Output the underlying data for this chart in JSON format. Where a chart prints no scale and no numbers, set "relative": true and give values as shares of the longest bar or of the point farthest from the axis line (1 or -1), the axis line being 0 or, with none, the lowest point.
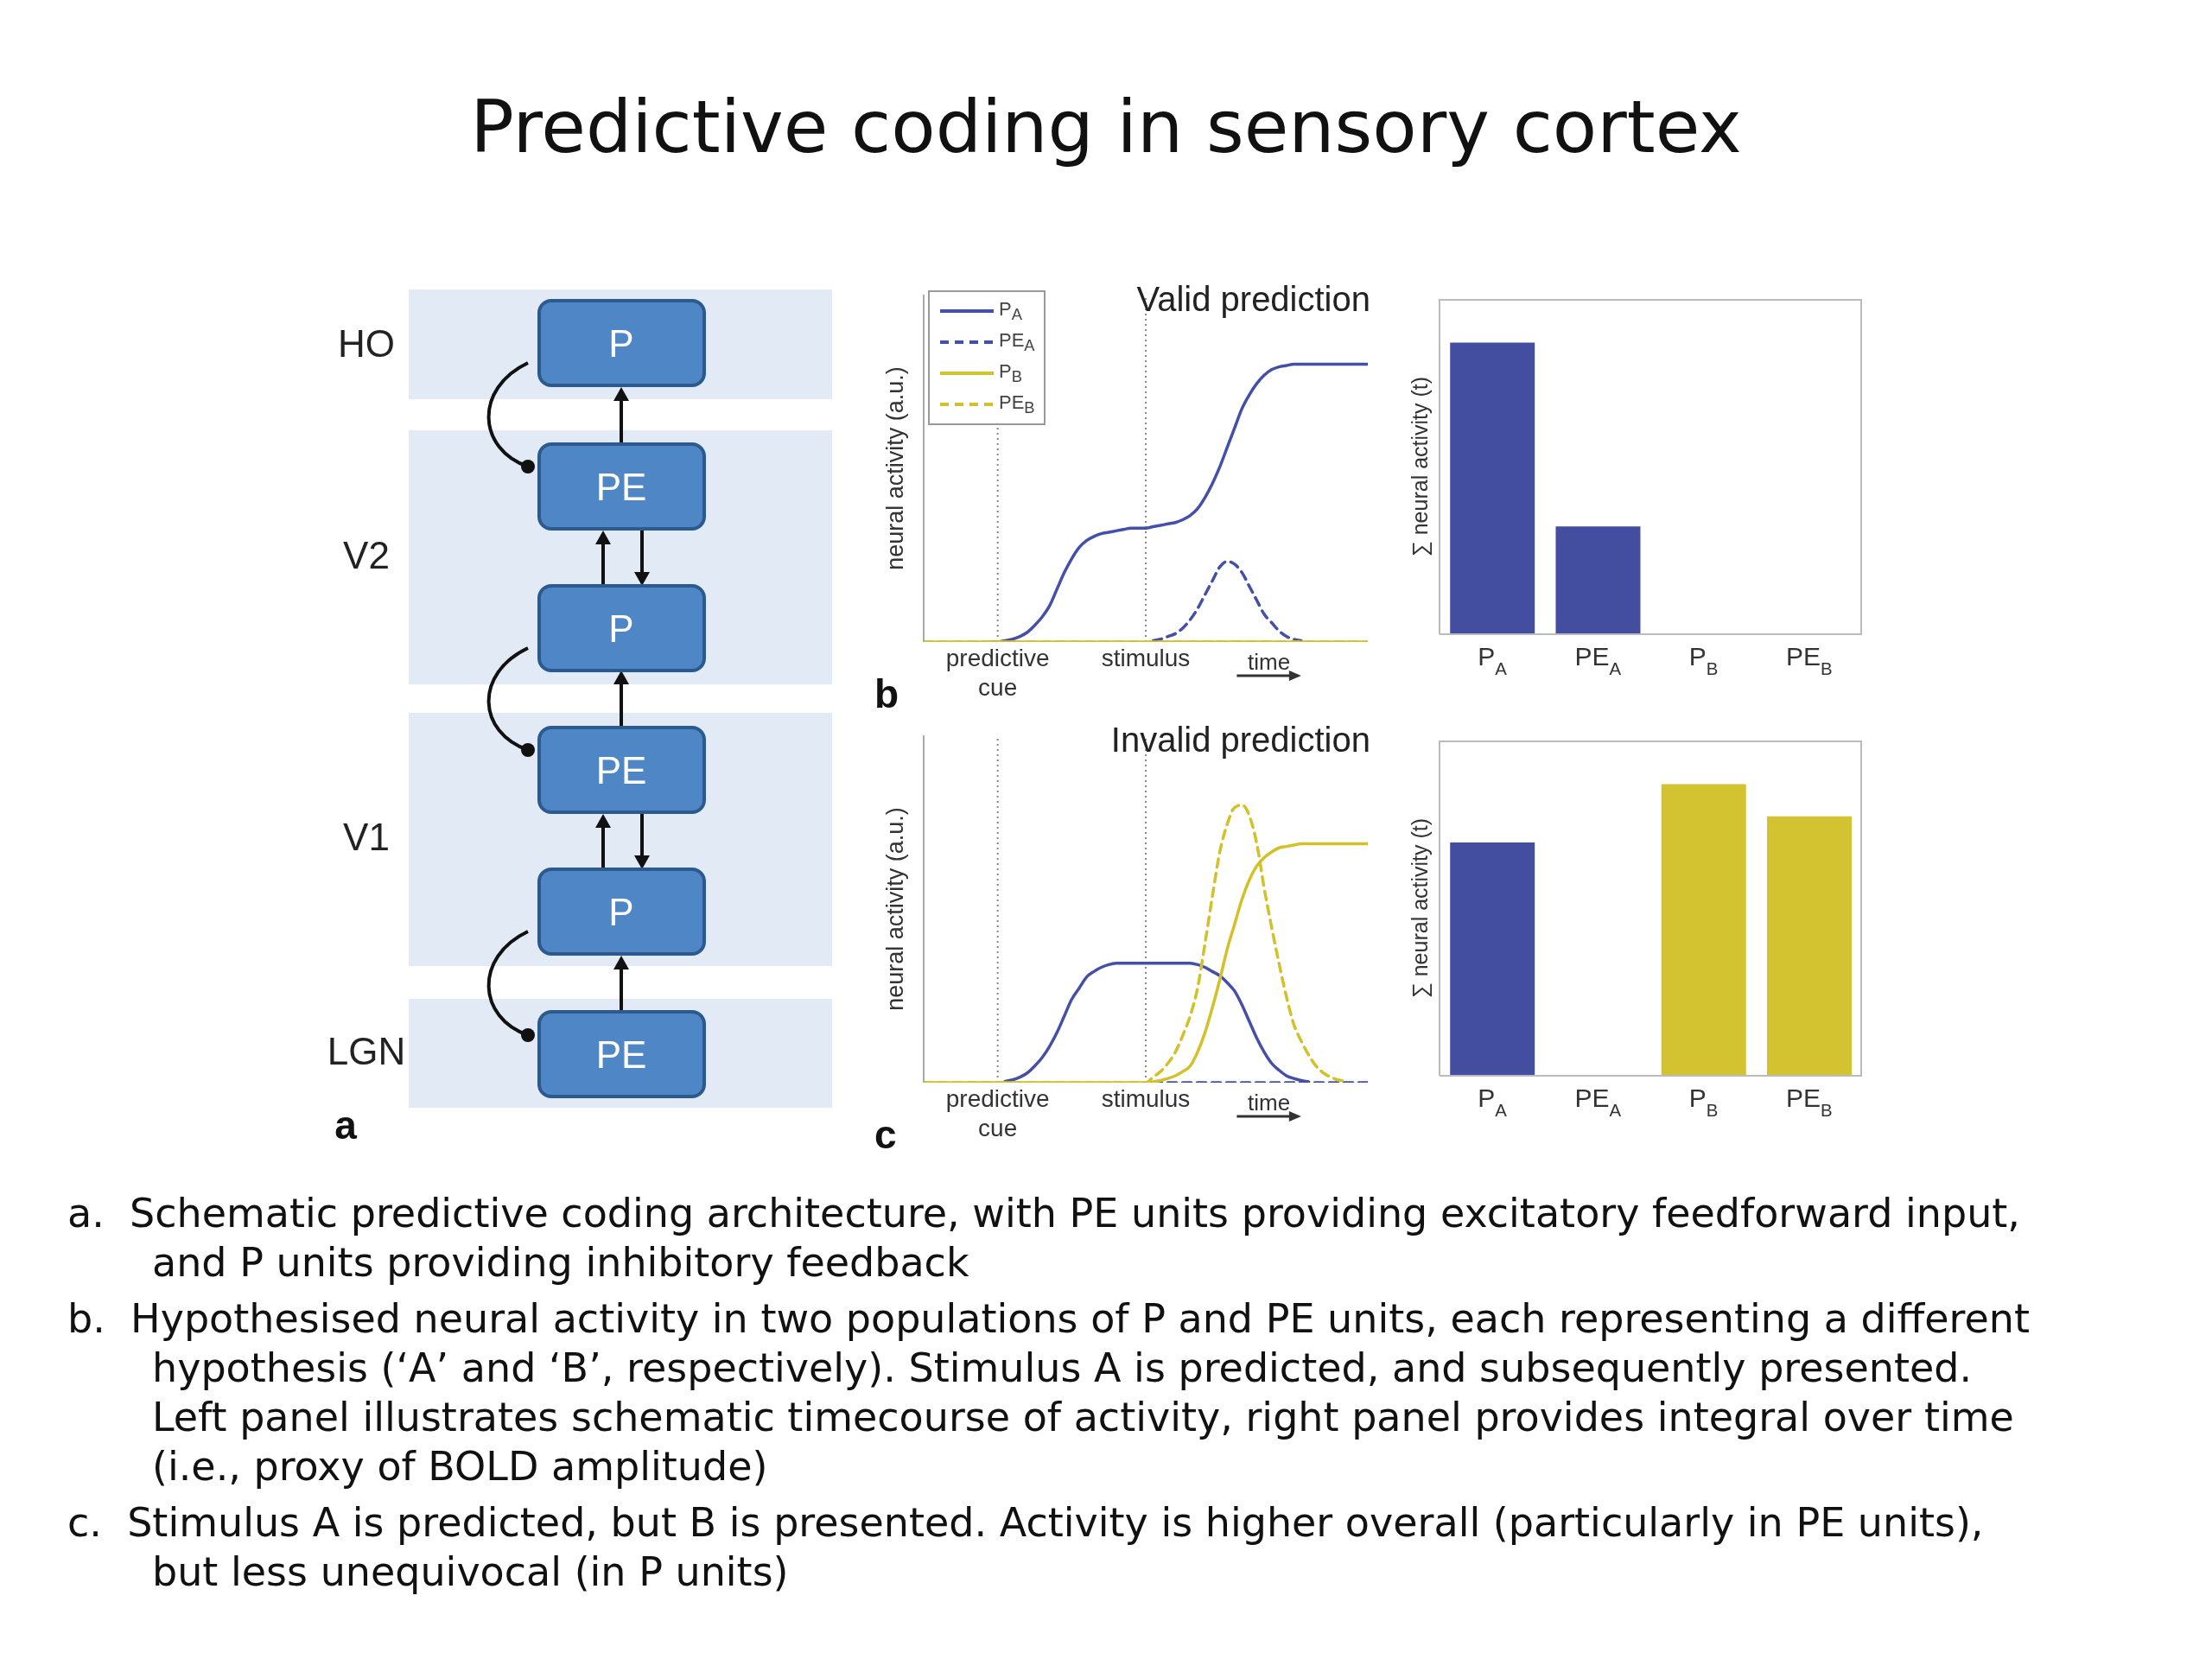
{
  "chart_data": [
    {
      "type": "other",
      "title": "Predictive coding in sensory cortex",
      "annotations": [
        "HO",
        "V2",
        "V1",
        "LGN",
        "P",
        "PE",
        "P",
        "PE",
        "P",
        "PE",
        "a",
        "a.  Schematic predictive coding architecture, with PE units providing excitatory feedforward input, and P units providing inhibitory feedback",
        "b.  Hypothesised neural activity in two populations of P and PE units, each representing a different hypothesis (‘A’ and ‘B’, respectively). Stimulus A is predicted, and subsequently presented. Left panel illustrates schematic timecourse of activity, right panel provides integral over time (i.e., proxy of BOLD amplitude)",
        "c.  Stimulus A is predicted, but B is presented. Activity is higher overall (particularly in PE units), but less unequivocal (in P units)"
      ]
    },
    {
      "type": "line",
      "title": "Valid prediction",
      "xlabel": "time",
      "ylabel": "neural activity (a.u.)",
      "relative": true,
      "legend": "top left",
      "annotations": [
        "b"
      ],
      "categories": [
        null,
        null,
        null,
        null,
        null,
        null,
        null,
        null,
        null,
        null,
        "predictive cue",
        null,
        null,
        null,
        null,
        null,
        null,
        null,
        null,
        null,
        null,
        null,
        null,
        null,
        null,
        null,
        null,
        null,
        null,
        null,
        "stimulus",
        null,
        null,
        null,
        null,
        null,
        null,
        null,
        null,
        null,
        null,
        null,
        null,
        null,
        null,
        null,
        null,
        null,
        null,
        null,
        null,
        null,
        null,
        null,
        null,
        null,
        null,
        null,
        null,
        null,
        null
      ],
      "ref_lines": [
        {
          "axis": "x",
          "value": "predictive cue",
          "line_style": "dotted",
          "color": "#888888"
        },
        {
          "axis": "x",
          "value": "stimulus",
          "line_style": "dotted",
          "color": "#888888"
        }
      ],
      "series": [
        {
          "name": "P$_{A}$",
          "color": "#4450a8",
          "line_style": "solid",
          "values": [
            null,
            null,
            null,
            null,
            null,
            null,
            null,
            null,
            null,
            0,
            0,
            0.005,
            0.01,
            0.02,
            0.035,
            0.06,
            0.09,
            0.13,
            0.19,
            0.25,
            0.3,
            0.34,
            0.365,
            0.38,
            0.39,
            0.395,
            0.4,
            0.405,
            0.41,
            0.41,
            0.41,
            0.415,
            0.42,
            0.425,
            0.43,
            0.44,
            0.455,
            0.48,
            0.52,
            0.57,
            0.63,
            0.7,
            0.77,
            0.84,
            0.89,
            0.93,
            0.96,
            0.98,
            0.99,
            0.995,
            1,
            1,
            1,
            1,
            1,
            1,
            1,
            1,
            1,
            1,
            1
          ]
        },
        {
          "name": "PE$_{A}$",
          "color": "#4450a8",
          "line_style": "dashed",
          "values": [
            null,
            null,
            null,
            null,
            null,
            null,
            null,
            null,
            null,
            null,
            null,
            null,
            null,
            null,
            null,
            null,
            null,
            null,
            null,
            null,
            null,
            null,
            null,
            null,
            null,
            null,
            null,
            null,
            null,
            null,
            null,
            0.005,
            0.01,
            0.02,
            0.03,
            0.05,
            0.08,
            0.12,
            0.17,
            0.22,
            0.27,
            0.29,
            0.28,
            0.25,
            0.2,
            0.15,
            0.1,
            0.07,
            0.04,
            0.02,
            0.01,
            0.005,
            null,
            null,
            null,
            null,
            null,
            null,
            null,
            null,
            null
          ]
        },
        {
          "name": "P$_{B}$",
          "color": "#d2c12a",
          "line_style": "solid",
          "values": [
            0,
            0,
            0,
            0,
            0,
            0,
            0,
            0,
            0,
            0,
            0,
            0,
            0,
            0,
            0,
            0,
            0,
            0,
            0,
            0,
            0,
            0,
            0,
            0,
            0,
            0,
            0,
            0,
            0,
            0,
            0,
            0,
            0,
            0,
            0,
            0,
            0,
            0,
            0,
            0,
            0,
            0,
            0,
            0,
            0,
            0,
            0,
            0,
            0,
            0,
            0,
            0,
            0,
            0,
            0,
            0,
            0,
            0,
            0,
            0,
            0
          ]
        },
        {
          "name": "PE$_{B}$",
          "color": "#d2c12a",
          "line_style": "dashed",
          "values": [
            0,
            0,
            0,
            0,
            0,
            0,
            0,
            0,
            0,
            0,
            0,
            0,
            0,
            0,
            0,
            0,
            0,
            0,
            0,
            0,
            0,
            0,
            0,
            0,
            0,
            0,
            0,
            0,
            0,
            0,
            0,
            0,
            0,
            0,
            0,
            0,
            0,
            0,
            0,
            0,
            0,
            0,
            0,
            0,
            0,
            0,
            0,
            0,
            0,
            0,
            0,
            0,
            0,
            0,
            0,
            0,
            0,
            0,
            0,
            0,
            0
          ]
        }
      ]
    },
    {
      "type": "bar",
      "ylabel": "∑ neural activity (t)",
      "relative": true,
      "categories": [
        "P$_{A}$",
        "PE$_{A}$",
        "P$_{B}$",
        "PE$_{B}$"
      ],
      "values": [
        1,
        0.37,
        0,
        0
      ],
      "colors": [
        "#434ea0",
        "#434ea0",
        "#d3c330",
        "#d3c330"
      ]
    },
    {
      "type": "line",
      "title": "Invalid prediction",
      "xlabel": "time",
      "ylabel": "neural activity (a.u.)",
      "relative": true,
      "annotations": [
        "c"
      ],
      "categories": [
        null,
        null,
        null,
        null,
        null,
        null,
        null,
        null,
        null,
        null,
        "predictive cue",
        null,
        null,
        null,
        null,
        null,
        null,
        null,
        null,
        null,
        null,
        null,
        null,
        null,
        null,
        null,
        null,
        null,
        null,
        null,
        "stimulus",
        null,
        null,
        null,
        null,
        null,
        null,
        null,
        null,
        null,
        null,
        null,
        null,
        null,
        null,
        null,
        null,
        null,
        null,
        null,
        null,
        null,
        null,
        null,
        null,
        null,
        null,
        null,
        null,
        null,
        null
      ],
      "ref_lines": [
        {
          "axis": "x",
          "value": "predictive cue",
          "line_style": "dotted",
          "color": "#888888"
        },
        {
          "axis": "x",
          "value": "stimulus",
          "line_style": "dotted",
          "color": "#888888"
        }
      ],
      "series": [
        {
          "color": "#4450a8",
          "line_style": "solid",
          "values": [
            null,
            null,
            null,
            null,
            null,
            null,
            null,
            null,
            null,
            null,
            null,
            0.005,
            0.01,
            0.02,
            0.035,
            0.06,
            0.09,
            0.13,
            0.18,
            0.24,
            0.3,
            0.34,
            0.38,
            0.4,
            0.415,
            0.425,
            0.43,
            0.43,
            0.43,
            0.43,
            0.43,
            0.43,
            0.43,
            0.43,
            0.43,
            0.43,
            0.43,
            0.425,
            0.415,
            0.4,
            0.385,
            0.36,
            0.33,
            0.28,
            0.22,
            0.16,
            0.11,
            0.07,
            0.045,
            0.025,
            0.015,
            0.008,
            0.003,
            null,
            null,
            null,
            null,
            null,
            null,
            null,
            null
          ]
        },
        {
          "color": "#4450a8",
          "line_style": "dashed",
          "values": [
            null,
            null,
            null,
            null,
            null,
            null,
            null,
            null,
            null,
            null,
            null,
            null,
            null,
            null,
            null,
            null,
            null,
            null,
            null,
            null,
            null,
            null,
            null,
            null,
            null,
            null,
            null,
            null,
            null,
            null,
            null,
            0,
            0,
            0,
            0,
            0,
            0,
            0,
            0,
            0,
            0,
            0,
            0,
            0,
            0,
            0,
            0,
            0,
            0,
            0,
            0,
            0,
            0,
            0,
            0,
            0,
            0,
            0,
            0,
            0,
            0
          ]
        },
        {
          "color": "#d2c12a",
          "line_style": "solid",
          "values": [
            0,
            0,
            0,
            0,
            0,
            0,
            0,
            0,
            0,
            0,
            0,
            0,
            0,
            0,
            0,
            0,
            0,
            0,
            0,
            0,
            0,
            0,
            0,
            0,
            0,
            0,
            0,
            0,
            0,
            0,
            0,
            0.003,
            0.008,
            0.015,
            0.025,
            0.04,
            0.06,
            0.11,
            0.18,
            0.27,
            0.37,
            0.48,
            0.57,
            0.66,
            0.73,
            0.78,
            0.81,
            0.83,
            0.845,
            0.85,
            0.855,
            0.86,
            0.86,
            0.86,
            0.86,
            0.86,
            0.86,
            0.86,
            0.86,
            0.86,
            0.86
          ]
        },
        {
          "color": "#d2c12a",
          "line_style": "dashed",
          "values": [
            0,
            0,
            0,
            0,
            0,
            0,
            0,
            0,
            0,
            0,
            0,
            0,
            0,
            0,
            0,
            0,
            0,
            0,
            0,
            0,
            0,
            0,
            0,
            0,
            0,
            0,
            0,
            0,
            0,
            0,
            0,
            0.02,
            0.04,
            0.07,
            0.11,
            0.17,
            0.24,
            0.34,
            0.5,
            0.67,
            0.83,
            0.93,
            0.99,
            1,
            0.96,
            0.86,
            0.7,
            0.56,
            0.43,
            0.31,
            0.21,
            0.15,
            0.1,
            0.06,
            0.035,
            0.02,
            0.01,
            0.005,
            null,
            null,
            null
          ]
        }
      ]
    },
    {
      "type": "bar",
      "ylabel": "∑ neural activity (t)",
      "relative": true,
      "categories": [
        "P$_{A}$",
        "PE$_{A}$",
        "P$_{B}$",
        "PE$_{B}$"
      ],
      "values": [
        0.8,
        0,
        1,
        0.89
      ],
      "colors": [
        "#434ea0",
        "#434ea0",
        "#d3c330",
        "#d3c330"
      ]
    }
  ]
}
